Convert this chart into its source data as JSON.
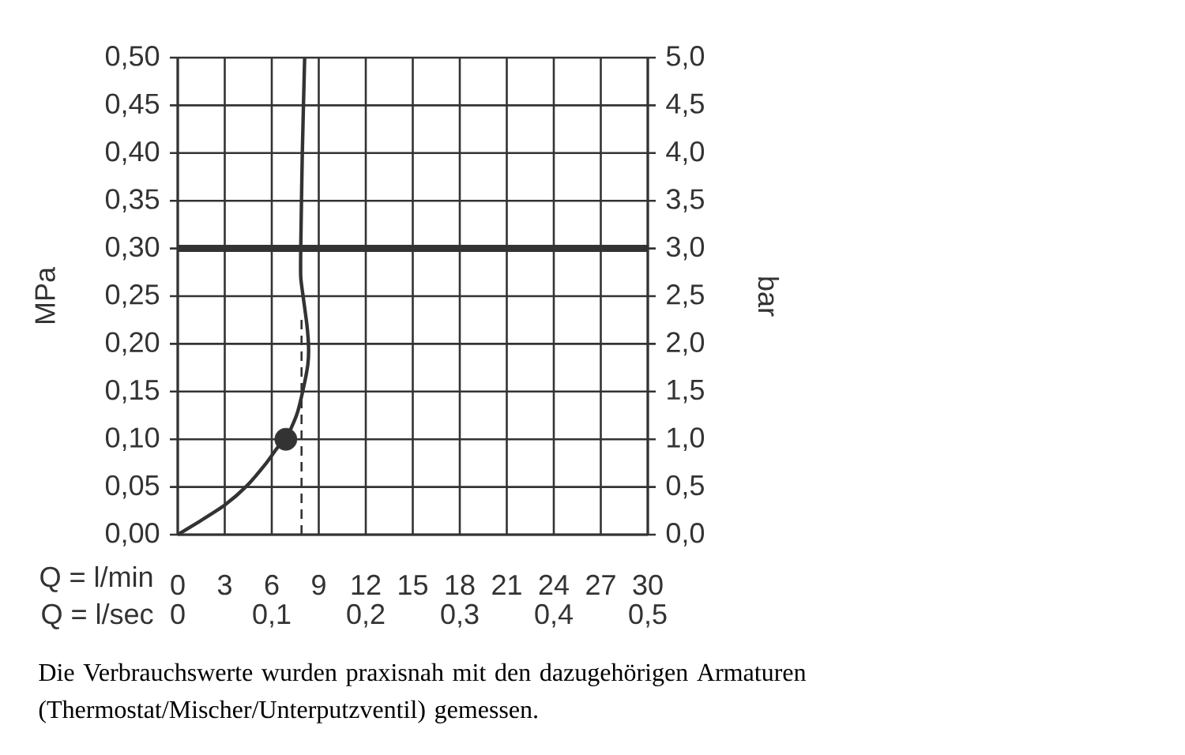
{
  "chart_data": {
    "type": "line",
    "xlabel": "Q = l/min",
    "x2label": "Q = l/sec",
    "ylabel": "MPa",
    "y2label": "bar",
    "xlim": [
      0,
      30
    ],
    "xticks": [
      0,
      3,
      6,
      9,
      12,
      15,
      18,
      21,
      24,
      27,
      30
    ],
    "x2lim": [
      0,
      0.5
    ],
    "x2ticks": [
      0,
      {
        "value": 0.1,
        "label": "0,1"
      },
      {
        "value": 0.2,
        "label": "0,2"
      },
      {
        "value": 0.3,
        "label": "0,3"
      },
      {
        "value": 0.4,
        "label": "0,4"
      },
      {
        "value": 0.5,
        "label": "0,5"
      }
    ],
    "ylim": [
      0,
      0.5
    ],
    "yticks": [
      {
        "value": 0,
        "label": "0,00"
      },
      {
        "value": 0.05,
        "label": "0,05"
      },
      {
        "value": 0.1,
        "label": "0,10"
      },
      {
        "value": 0.15,
        "label": "0,15"
      },
      {
        "value": 0.2,
        "label": "0,20"
      },
      {
        "value": 0.25,
        "label": "0,25"
      },
      {
        "value": 0.3,
        "label": "0,30"
      },
      {
        "value": 0.35,
        "label": "0,35"
      },
      {
        "value": 0.4,
        "label": "0,40"
      },
      {
        "value": 0.45,
        "label": "0,45"
      },
      {
        "value": 0.5,
        "label": "0,50"
      }
    ],
    "y2lim": [
      0,
      5
    ],
    "y2ticks": [
      {
        "value": 0,
        "label": "0,0"
      },
      {
        "value": 0.5,
        "label": "0,5"
      },
      {
        "value": 1,
        "label": "1,0"
      },
      {
        "value": 1.5,
        "label": "1,5"
      },
      {
        "value": 2,
        "label": "2,0"
      },
      {
        "value": 2.5,
        "label": "2,5"
      },
      {
        "value": 3,
        "label": "3,0"
      },
      {
        "value": 3.5,
        "label": "3,5"
      },
      {
        "value": 4,
        "label": "4,0"
      },
      {
        "value": 4.5,
        "label": "4,5"
      },
      {
        "value": 5,
        "label": "5,0"
      }
    ],
    "grid": true,
    "series": [
      {
        "type": "line",
        "color": "#333333",
        "x": [
          0,
          1.5,
          3,
          4.4,
          5.6,
          6.4,
          6.9,
          7.6,
          8.0,
          8.3,
          8.35,
          8.25,
          8.0,
          7.85,
          7.85,
          7.95,
          8.1
        ],
        "values": [
          0,
          0.015,
          0.031,
          0.051,
          0.074,
          0.092,
          0.1,
          0.126,
          0.152,
          0.178,
          0.196,
          0.219,
          0.25,
          0.27,
          0.3,
          0.4,
          0.5
        ]
      },
      {
        "color": "#333333",
        "line_style": "dashed",
        "x": [
          7.9,
          7.9
        ],
        "values": [
          0,
          0.23
        ]
      },
      {
        "type": "scatter",
        "color": "#333333",
        "x": [
          6.9
        ],
        "values": [
          0.1
        ]
      }
    ],
    "ref_lines": [
      {
        "axis": "y",
        "value": 0.3,
        "color": "#333333"
      }
    ],
    "annotations": [
      "Die Verbrauchswerte wurden praxisnah mit den dazugehörigen Armaturen (Thermostat/Mischer/Unterputzventil) gemessen."
    ]
  }
}
